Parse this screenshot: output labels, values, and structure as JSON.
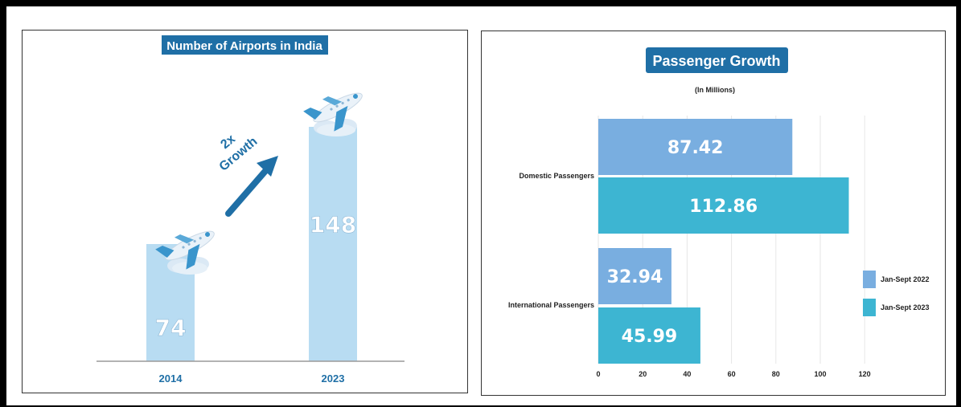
{
  "colors": {
    "title_bg": "#1f6fa6",
    "left_bar": "#b8dcf2",
    "arrow": "#1f6fa6",
    "series_2022": "#79aee0",
    "series_2023": "#3db5d2",
    "grid": "#e6e6e6"
  },
  "chart_data": [
    {
      "type": "bar",
      "title": "Number of Airports in India",
      "categories": [
        "2014",
        "2023"
      ],
      "values": [
        74,
        148
      ],
      "annotation": [
        "2x",
        "Growth"
      ],
      "ylim": [
        0,
        170
      ]
    },
    {
      "type": "bar",
      "orientation": "horizontal",
      "title": "Passenger Growth",
      "subtitle": "(In Millions)",
      "categories": [
        "Domestic Passengers",
        "International Passengers"
      ],
      "series": [
        {
          "name": "Jan-Sept 2022",
          "values": [
            87.42,
            32.94
          ]
        },
        {
          "name": "Jan-Sept 2023",
          "values": [
            112.86,
            45.99
          ]
        }
      ],
      "xticks": [
        0,
        20,
        40,
        60,
        80,
        100,
        120
      ],
      "xlim": [
        0,
        120
      ],
      "grid": true,
      "legend": "right"
    }
  ]
}
